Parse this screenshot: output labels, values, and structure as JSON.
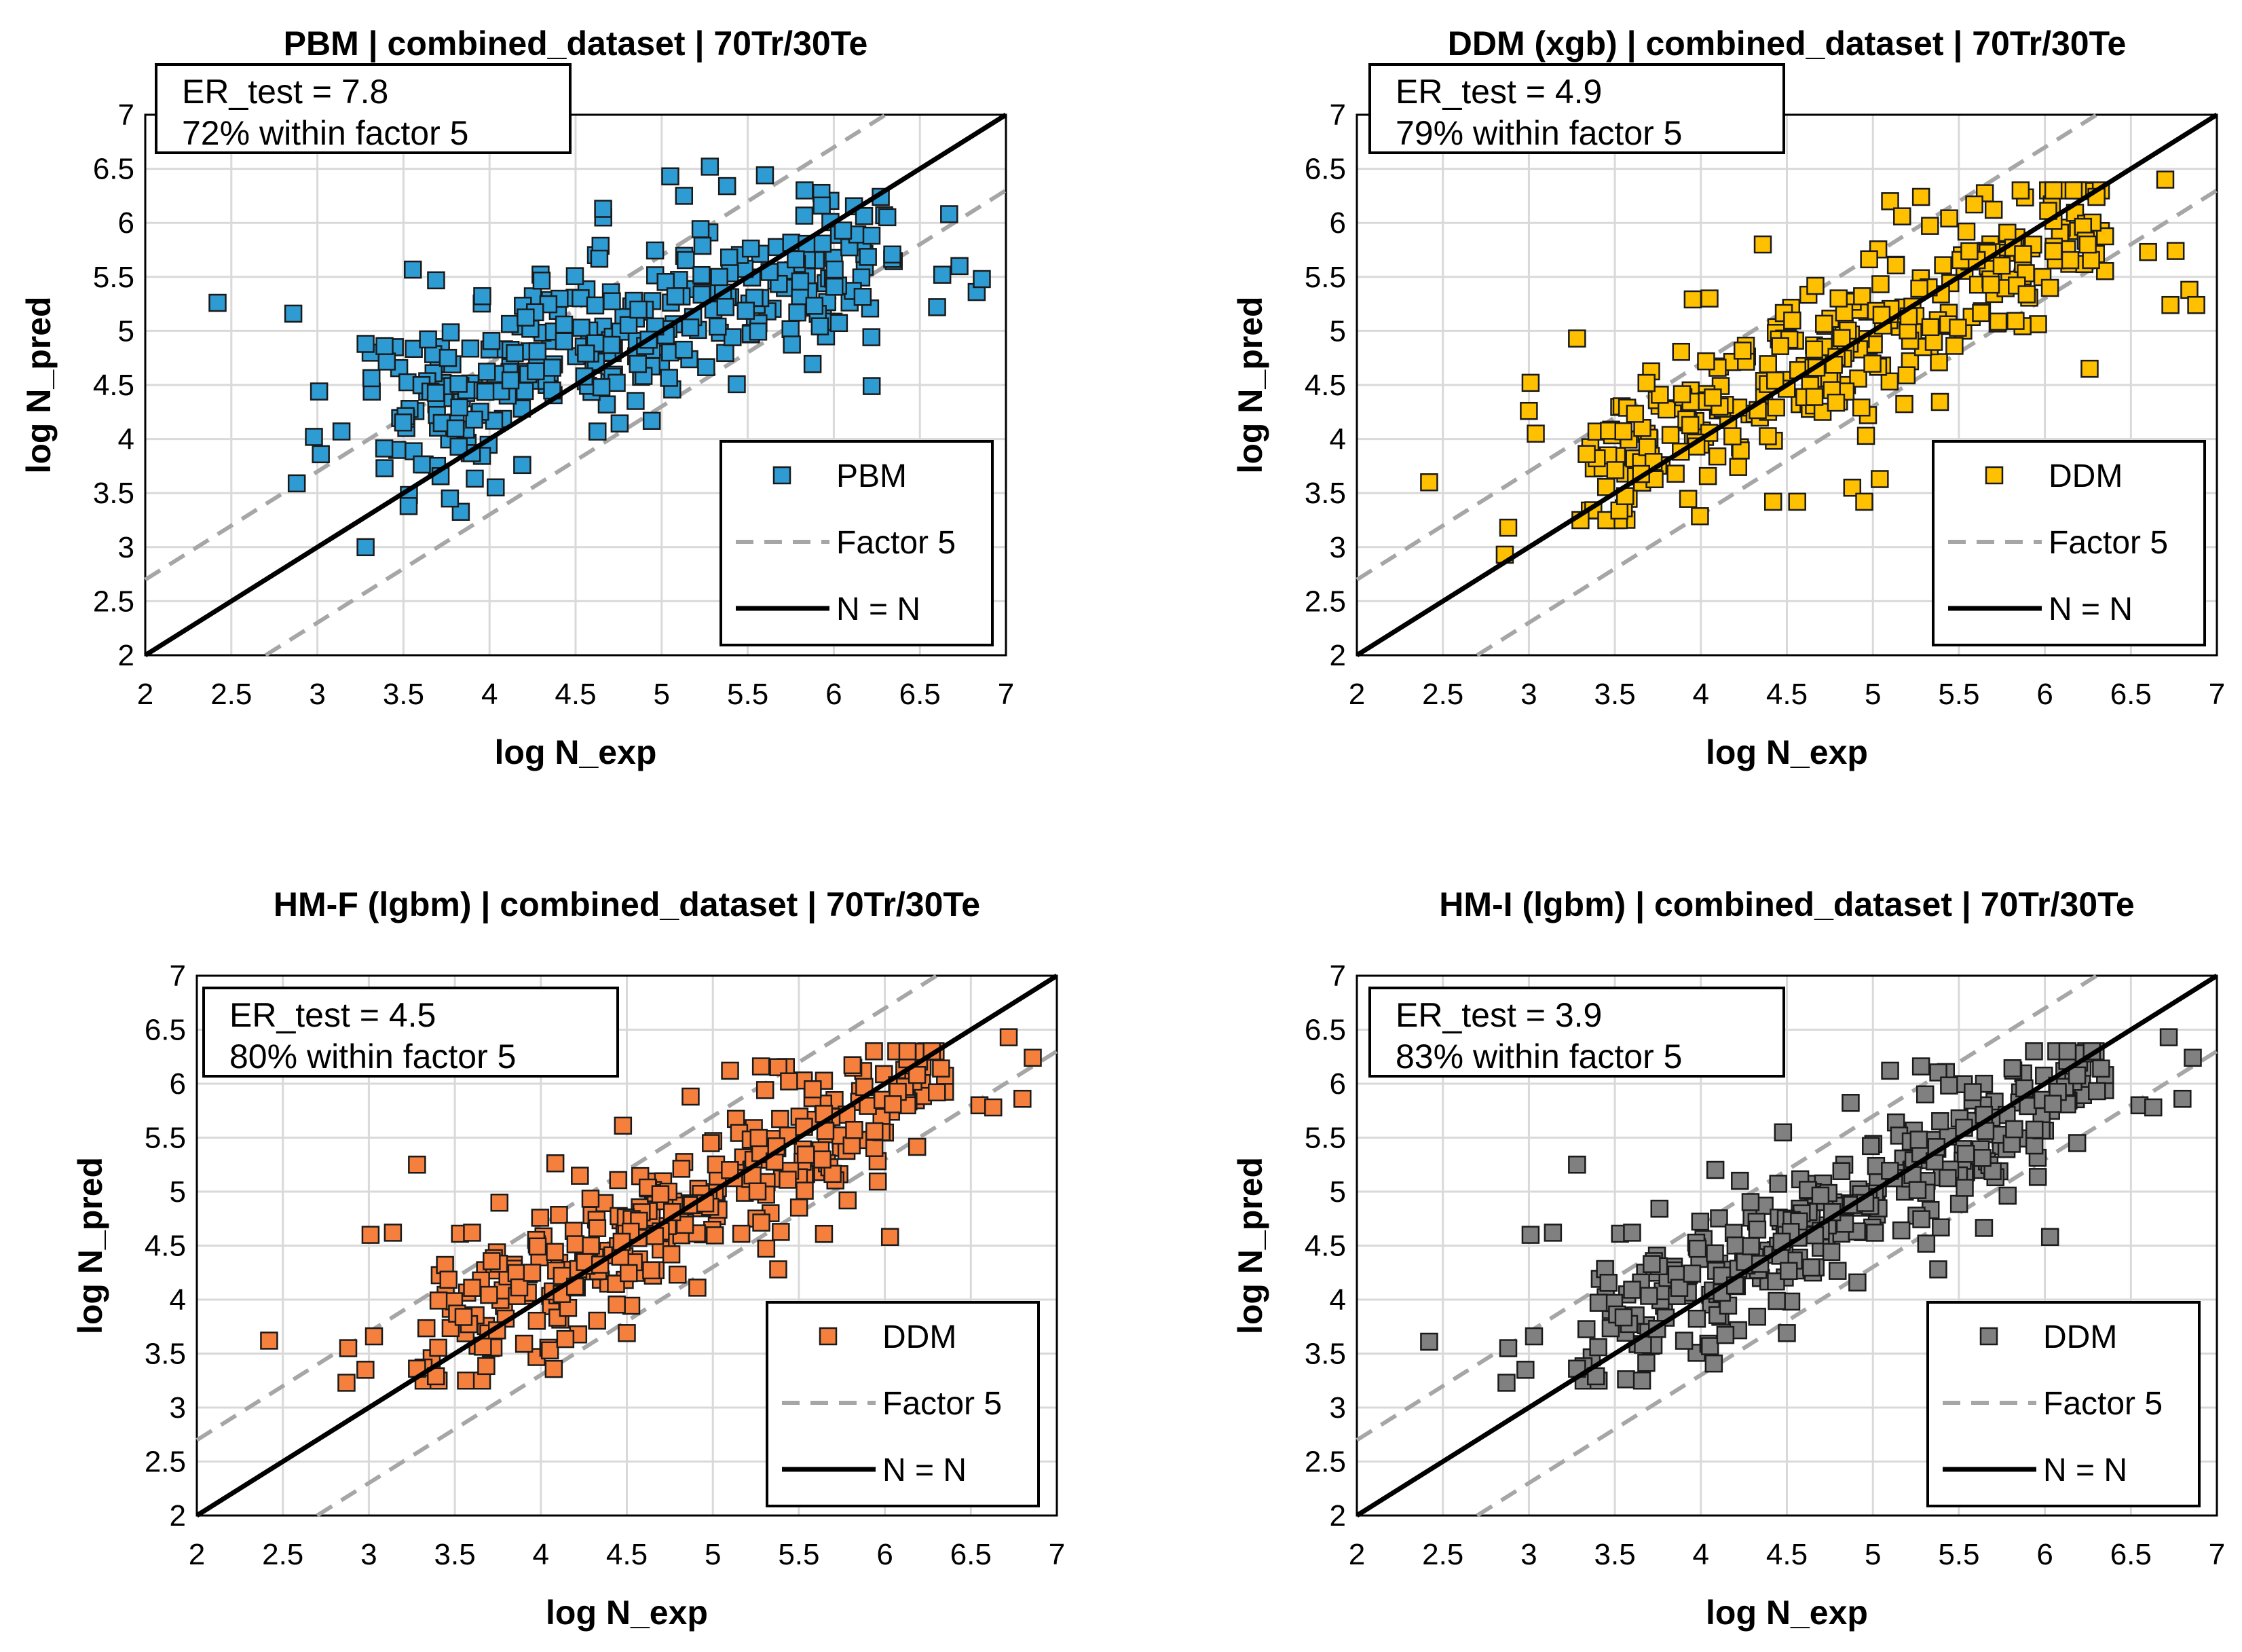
{
  "figure": {
    "style": {
      "identity_color": "#000000",
      "factor_color": "#a6a6a6",
      "grid_color": "#d9d9d9"
    },
    "xlabel": "log N_exp",
    "ylabel": "log N_pred",
    "xlim": [
      2,
      7
    ],
    "ylim": [
      2,
      7
    ],
    "ticks": [
      "2",
      "2.5",
      "3",
      "3.5",
      "4",
      "4.5",
      "5",
      "5.5",
      "6",
      "6.5",
      "7"
    ]
  },
  "chart_data": [
    {
      "type": "scatter",
      "title": "PBM | combined_dataset  | 70Tr/30Te",
      "xlabel": "log N_exp",
      "ylabel": "log N_pred",
      "xlim": [
        2,
        7
      ],
      "ylim": [
        2,
        7
      ],
      "stats": [
        "ER_test = 7.8",
        "72% within  factor 5"
      ],
      "legend": [
        "PBM",
        "Factor 5",
        "N = N"
      ],
      "marker_color": "#2e9bd3",
      "seed": 11,
      "n_points": 330,
      "points": [
        [
          2.42,
          5.26
        ],
        [
          2.86,
          5.16
        ],
        [
          2.88,
          3.59
        ],
        [
          2.98,
          4.02
        ],
        [
          3.01,
          4.44
        ],
        [
          3.02,
          3.86
        ],
        [
          3.14,
          4.07
        ],
        [
          3.28,
          3.0
        ],
        [
          3.28,
          4.88
        ],
        [
          3.39,
          4.86
        ],
        [
          3.39,
          3.73
        ],
        [
          3.53,
          3.38
        ],
        [
          3.77,
          3.45
        ],
        [
          4.19,
          3.76
        ],
        [
          4.66,
          6.13
        ],
        [
          5.05,
          6.43
        ],
        [
          5.13,
          6.25
        ],
        [
          5.28,
          6.52
        ],
        [
          5.38,
          6.34
        ],
        [
          5.6,
          6.44
        ],
        [
          5.93,
          6.16
        ],
        [
          6.22,
          4.49
        ],
        [
          6.6,
          5.22
        ],
        [
          6.67,
          6.08
        ],
        [
          6.73,
          5.6
        ],
        [
          6.83,
          5.36
        ],
        [
          6.86,
          5.48
        ],
        [
          6.63,
          5.52
        ]
      ]
    },
    {
      "type": "scatter",
      "title": "DDM (xgb) | combined_dataset  | 70Tr/30Te",
      "xlabel": "log N_exp",
      "ylabel": "log N_pred",
      "xlim": [
        2,
        7
      ],
      "ylim": [
        2,
        7
      ],
      "stats": [
        "ER_test = 4.9",
        "79% within  factor 5"
      ],
      "legend": [
        "DDM",
        "Factor 5",
        "N = N"
      ],
      "marker_color": "#ffc000",
      "seed": 23,
      "n_points": 330,
      "points": [
        [
          2.42,
          3.6
        ],
        [
          2.86,
          2.93
        ],
        [
          2.88,
          3.18
        ],
        [
          3.0,
          4.26
        ],
        [
          3.01,
          4.52
        ],
        [
          3.04,
          4.05
        ],
        [
          3.28,
          4.93
        ],
        [
          4.05,
          5.3
        ],
        [
          4.36,
          5.8
        ],
        [
          4.42,
          3.42
        ],
        [
          4.56,
          3.42
        ],
        [
          4.66,
          4.39
        ],
        [
          4.88,
          3.55
        ],
        [
          4.95,
          3.42
        ],
        [
          5.04,
          3.63
        ],
        [
          5.1,
          6.2
        ],
        [
          5.17,
          6.06
        ],
        [
          5.28,
          6.24
        ],
        [
          6.26,
          4.65
        ],
        [
          6.3,
          6.24
        ],
        [
          6.6,
          5.73
        ],
        [
          6.7,
          6.4
        ],
        [
          6.73,
          5.24
        ],
        [
          6.76,
          5.74
        ],
        [
          6.84,
          5.38
        ],
        [
          6.88,
          5.24
        ]
      ]
    },
    {
      "type": "scatter",
      "title": "HM-F (lgbm) | combined_dataset  | 70Tr/30Te",
      "xlabel": "log N_exp",
      "ylabel": "log N_pred",
      "xlim": [
        2,
        7
      ],
      "ylim": [
        2,
        7
      ],
      "stats": [
        "ER_test = 4.5",
        "80% within  factor 5"
      ],
      "legend": [
        "DDM",
        "Factor 5",
        "N = N"
      ],
      "marker_color": "#f5803d",
      "seed": 37,
      "n_points": 330,
      "points": [
        [
          2.42,
          3.62
        ],
        [
          2.87,
          3.23
        ],
        [
          2.88,
          3.55
        ],
        [
          2.98,
          3.35
        ],
        [
          3.01,
          4.6
        ],
        [
          3.03,
          3.66
        ],
        [
          3.14,
          4.62
        ],
        [
          3.28,
          5.25
        ],
        [
          3.28,
          3.36
        ],
        [
          3.39,
          3.29
        ],
        [
          3.53,
          4.61
        ],
        [
          3.6,
          4.62
        ],
        [
          4.5,
          3.69
        ],
        [
          5.1,
          6.12
        ],
        [
          5.28,
          6.16
        ],
        [
          5.38,
          4.28
        ],
        [
          6.03,
          4.58
        ],
        [
          6.55,
          5.8
        ],
        [
          6.63,
          5.78
        ],
        [
          6.72,
          6.43
        ],
        [
          6.8,
          5.86
        ],
        [
          6.86,
          6.24
        ]
      ]
    },
    {
      "type": "scatter",
      "title": "HM-I (lgbm) | combined_dataset  | 70Tr/30Te",
      "xlabel": "log N_exp",
      "ylabel": "log N_pred",
      "xlim": [
        2,
        7
      ],
      "ylim": [
        2,
        7
      ],
      "stats": [
        "ER_test = 3.9",
        "83% within  factor 5"
      ],
      "legend": [
        "DDM",
        "Factor 5",
        "N = N"
      ],
      "marker_color": "#808080",
      "seed": 37,
      "n_points": 330,
      "points": [
        [
          2.42,
          3.61
        ],
        [
          2.87,
          3.23
        ],
        [
          2.88,
          3.55
        ],
        [
          2.98,
          3.35
        ],
        [
          3.01,
          4.6
        ],
        [
          3.03,
          3.66
        ],
        [
          3.14,
          4.62
        ],
        [
          3.28,
          5.25
        ],
        [
          3.28,
          3.36
        ],
        [
          3.39,
          3.29
        ],
        [
          3.53,
          4.61
        ],
        [
          3.6,
          4.62
        ],
        [
          4.5,
          3.69
        ],
        [
          5.1,
          6.12
        ],
        [
          5.28,
          6.16
        ],
        [
          5.38,
          4.28
        ],
        [
          6.03,
          4.58
        ],
        [
          6.55,
          5.8
        ],
        [
          6.63,
          5.78
        ],
        [
          6.72,
          6.43
        ],
        [
          6.8,
          5.86
        ],
        [
          6.86,
          6.24
        ]
      ]
    }
  ]
}
